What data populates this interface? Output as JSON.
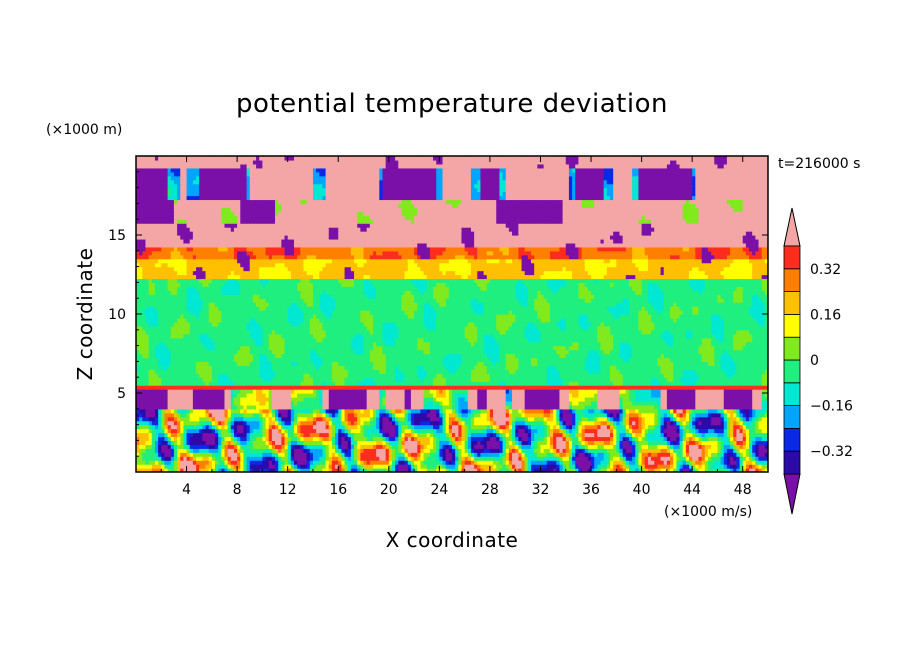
{
  "chart_data": {
    "type": "heatmap",
    "title": "potential temperature deviation",
    "xlabel": "X coordinate",
    "ylabel": "Z coordinate",
    "x_unit": "(×1000 m/s)",
    "y_unit": "(×1000 m)",
    "time_label": "t=216000 s",
    "xlim": [
      0,
      50
    ],
    "ylim": [
      0,
      20
    ],
    "x_ticks": [
      4,
      8,
      12,
      16,
      20,
      24,
      28,
      32,
      36,
      40,
      44,
      48
    ],
    "y_ticks": [
      5,
      10,
      15
    ],
    "colorbar": {
      "levels": [
        -0.4,
        -0.32,
        -0.24,
        -0.16,
        -0.08,
        0,
        0.08,
        0.16,
        0.24,
        0.32,
        0.4
      ],
      "tick_labels": [
        "0.32",
        "0.16",
        "0",
        "−0.16",
        "−0.32"
      ],
      "tick_values": [
        0.32,
        0.16,
        0,
        -0.16,
        -0.32
      ],
      "colors": [
        "#7b10a8",
        "#2c0aa8",
        "#0b28e6",
        "#00a5ff",
        "#00e8d2",
        "#1fef7e",
        "#80ea1e",
        "#ffff00",
        "#ffc000",
        "#ff8000",
        "#ff2d1e",
        "#f4a6a6"
      ]
    },
    "bands": [
      {
        "z_range": [
          0,
          5.3
        ],
        "description_value": "mixed"
      },
      {
        "z_range": [
          5.3,
          5.6
        ],
        "value": 0.36
      },
      {
        "z_range": [
          5.6,
          12.2
        ],
        "value": -0.04
      },
      {
        "z_range": [
          12.2,
          13.5
        ],
        "value": 0.2
      },
      {
        "z_range": [
          13.5,
          14.2
        ],
        "value": 0.28
      },
      {
        "z_range": [
          14.2,
          20
        ],
        "value": 0.4
      }
    ]
  }
}
